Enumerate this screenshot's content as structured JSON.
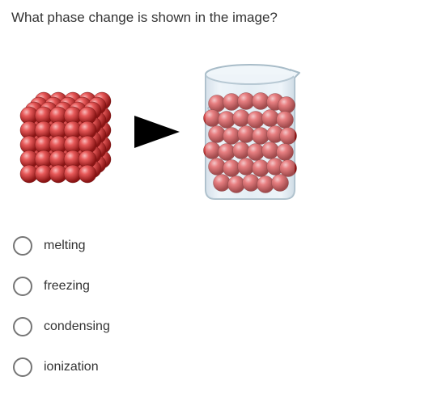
{
  "question": {
    "text": "What phase change is shown in the image?"
  },
  "diagram": {
    "solid": {
      "sphere_color_light": "#e85a5a",
      "sphere_color_dark": "#a01818",
      "sphere_highlight": "#f8bcbc",
      "rows": 5,
      "cols": 5,
      "depth": 4
    },
    "arrow": {
      "color": "#000000"
    },
    "liquid": {
      "beaker_stroke": "#b8c8d4",
      "beaker_fill": "#e8f0f6",
      "liquid_fill": "#d8e6ee",
      "sphere_color_light": "#e85a5a",
      "sphere_color_dark": "#a01818",
      "sphere_highlight": "#f8bcbc"
    }
  },
  "options": [
    {
      "label": "melting"
    },
    {
      "label": "freezing"
    },
    {
      "label": "condensing"
    },
    {
      "label": "ionization"
    }
  ]
}
